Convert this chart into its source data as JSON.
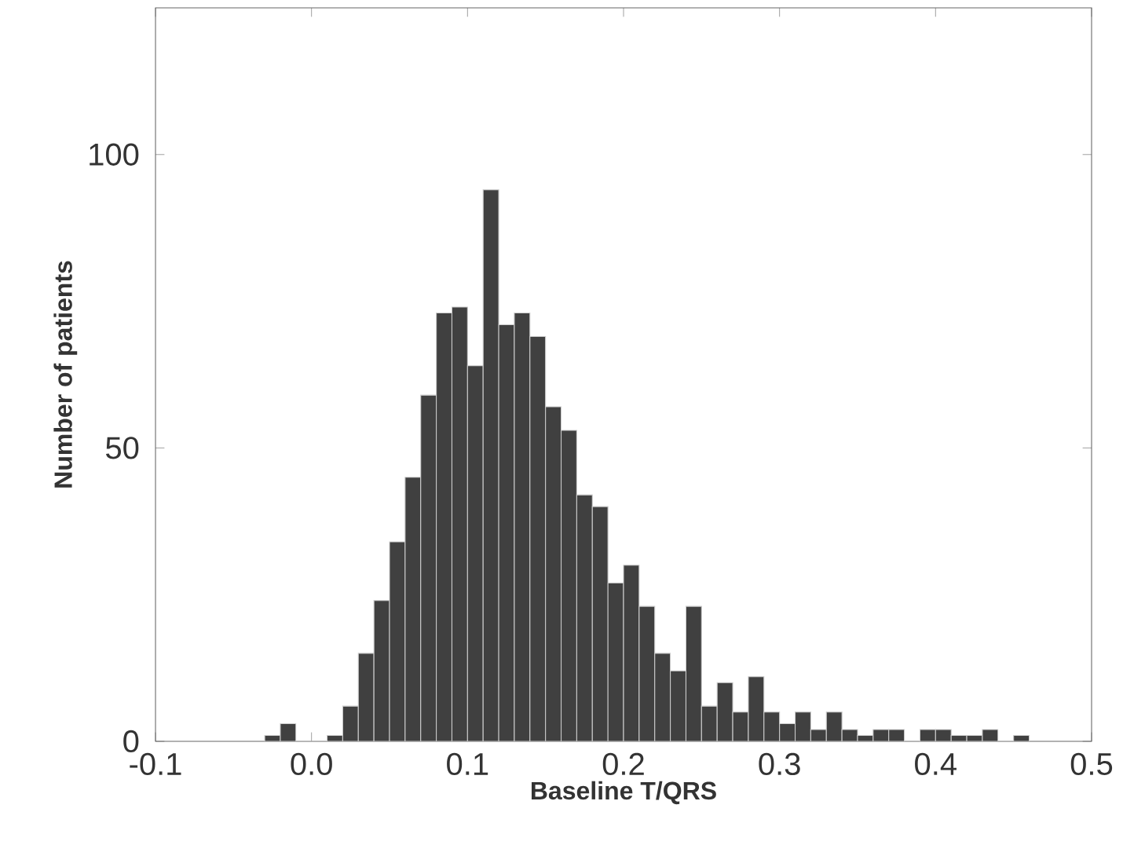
{
  "chart_data": {
    "type": "histogram",
    "xlabel": "Baseline T/QRS",
    "ylabel": "Number of patients",
    "bins": [
      -0.03,
      -0.02,
      -0.01,
      0.0,
      0.01,
      0.02,
      0.03,
      0.04,
      0.05,
      0.06,
      0.07,
      0.08,
      0.09,
      0.1,
      0.11,
      0.12,
      0.13,
      0.14,
      0.15,
      0.16,
      0.17,
      0.18,
      0.19,
      0.2,
      0.21,
      0.22,
      0.23,
      0.24,
      0.25,
      0.26,
      0.27,
      0.28,
      0.29,
      0.3,
      0.31,
      0.32,
      0.33,
      0.34,
      0.35,
      0.36,
      0.37,
      0.38,
      0.39,
      0.4,
      0.41,
      0.42,
      0.43,
      0.44,
      0.45,
      0.46
    ],
    "values": [
      1,
      3,
      0,
      0,
      1,
      6,
      15,
      24,
      34,
      45,
      59,
      73,
      74,
      64,
      94,
      71,
      73,
      69,
      57,
      53,
      42,
      40,
      27,
      30,
      23,
      15,
      12,
      23,
      6,
      10,
      5,
      11,
      5,
      3,
      5,
      2,
      5,
      2,
      1,
      2,
      2,
      0,
      2,
      2,
      1,
      1,
      2,
      0,
      1
    ],
    "color": "#404040",
    "xlim": [
      -0.1,
      0.5
    ],
    "ylim": [
      0,
      125
    ],
    "xticks": [
      -0.1,
      {
        "value": 0,
        "label": "0.0"
      },
      0.1,
      0.2,
      0.3,
      0.4,
      0.5
    ],
    "yticks": [
      0,
      50,
      100
    ]
  }
}
